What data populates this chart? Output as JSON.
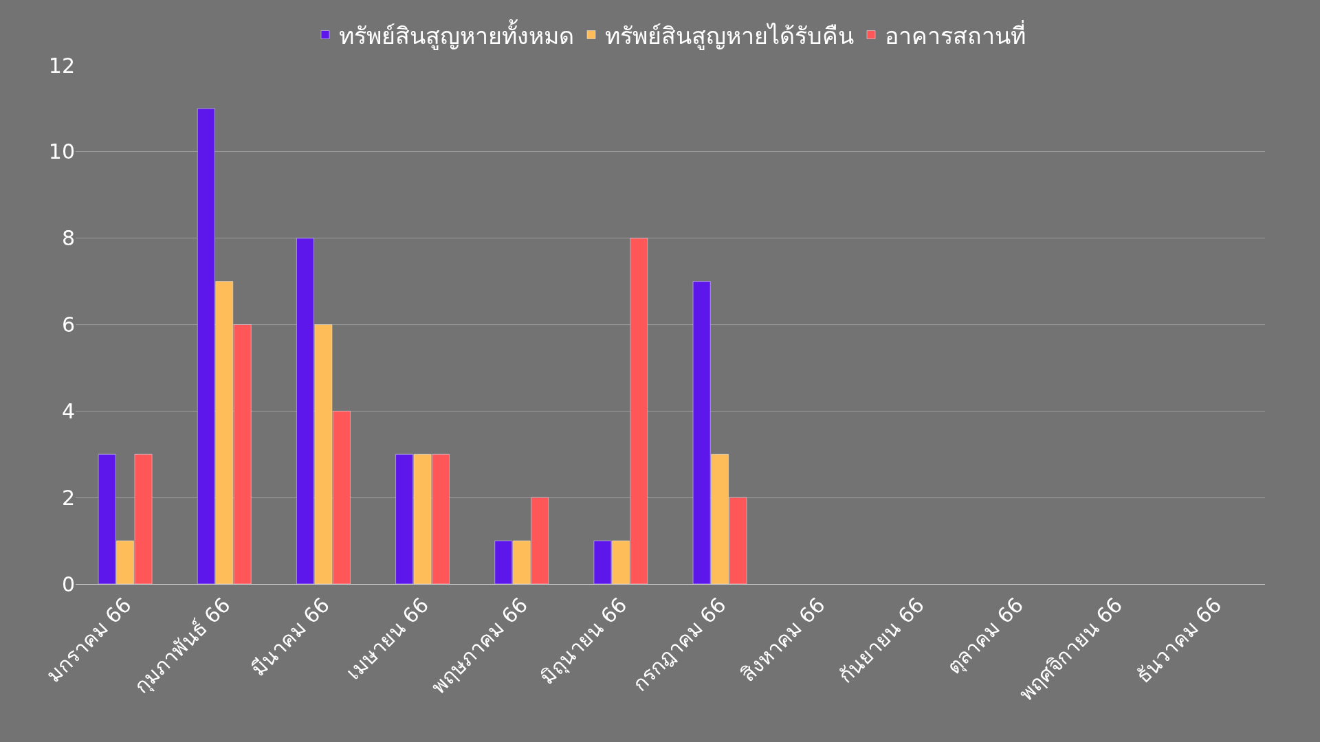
{
  "chart_data": {
    "type": "bar",
    "categories": [
      "มกราคม 66",
      "กุมภาพันธ์ 66",
      "มีนาคม 66",
      "เมษายน 66",
      "พฤษภาคม 66",
      "มิถุนายน 66",
      "กรกฎาคม 66",
      "สิงหาคม 66",
      "กันยายน 66",
      "ตุลาคม 66",
      "พฤศจิกายน 66",
      "ธันวาคม 66"
    ],
    "series": [
      {
        "name": "ทรัพย์สินสูญหายทั้งหมด",
        "color": "#5e17eb",
        "values": [
          3,
          11,
          8,
          3,
          1,
          1,
          7,
          null,
          null,
          null,
          null,
          null
        ]
      },
      {
        "name": "ทรัพย์สินสูญหายได้รับคืน",
        "color": "#ffbd59",
        "values": [
          1,
          7,
          6,
          3,
          1,
          1,
          3,
          null,
          null,
          null,
          null,
          null
        ]
      },
      {
        "name": "อาคารสถานที่",
        "color": "#ff5757",
        "values": [
          3,
          6,
          4,
          3,
          2,
          8,
          2,
          null,
          null,
          null,
          null,
          null
        ]
      }
    ],
    "ylim": [
      0,
      12
    ],
    "yticks": [
      0,
      2,
      4,
      6,
      8,
      10,
      12
    ],
    "grid": "y",
    "legend": "top"
  }
}
